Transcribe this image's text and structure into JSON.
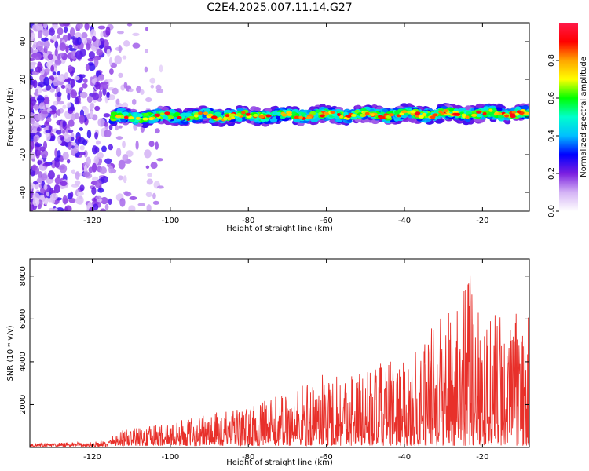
{
  "page": {
    "title": "C2E4.2025.007.11.14.G27"
  },
  "chart_data": [
    {
      "id": "spectrogram",
      "type": "heatmap",
      "xlabel": "Height of straight line (km)",
      "ylabel": "Frequency (Hz)",
      "xlim": [
        -136,
        -8
      ],
      "ylim": [
        -50,
        50
      ],
      "xticks": [
        -120,
        -100,
        -80,
        -60,
        -40,
        -20
      ],
      "yticks": [
        -40,
        -20,
        0,
        20,
        40
      ],
      "ridge": {
        "x_start": -115,
        "x_end": -8,
        "freq_center_start": 0,
        "freq_center_end": 2,
        "half_width_hz": 4
      },
      "noise_region": {
        "x_start": -136,
        "x_end": -102
      },
      "colorbar": {
        "label": "Normalized spectral amplitude",
        "range": [
          0.0,
          1.0
        ],
        "ticks": [
          0.0,
          0.2,
          0.4,
          0.6,
          0.8
        ],
        "tick_labels": [
          "0.0",
          "0.2",
          "0.4",
          "0.6",
          "0.8"
        ],
        "colors": [
          "#ffffff",
          "#d4b3f5",
          "#7b1fe0",
          "#0000ff",
          "#00bfff",
          "#00ffcc",
          "#00ff00",
          "#ffff00",
          "#ffa500",
          "#ff0000",
          "#ff1a4a"
        ]
      }
    },
    {
      "id": "snr",
      "type": "line",
      "xlabel": "Height of straight line (km)",
      "ylabel": "SNR (10 * v/v)",
      "xlim": [
        -136,
        -8
      ],
      "ylim": [
        0,
        8800
      ],
      "xticks": [
        -120,
        -100,
        -80,
        -60,
        -40,
        -20
      ],
      "yticks": [
        2000,
        4000,
        6000,
        8000
      ],
      "color": "#e8302a",
      "envelope": [
        {
          "x": -136,
          "y": 150
        },
        {
          "x": -116,
          "y": 250
        },
        {
          "x": -114,
          "y": 700
        },
        {
          "x": -100,
          "y": 1100
        },
        {
          "x": -90,
          "y": 1500
        },
        {
          "x": -80,
          "y": 1800
        },
        {
          "x": -70,
          "y": 2600
        },
        {
          "x": -60,
          "y": 3500
        },
        {
          "x": -50,
          "y": 3600
        },
        {
          "x": -40,
          "y": 4200
        },
        {
          "x": -30,
          "y": 6200
        },
        {
          "x": -25,
          "y": 8500
        },
        {
          "x": -18,
          "y": 6500
        },
        {
          "x": -8,
          "y": 6000
        }
      ]
    }
  ]
}
